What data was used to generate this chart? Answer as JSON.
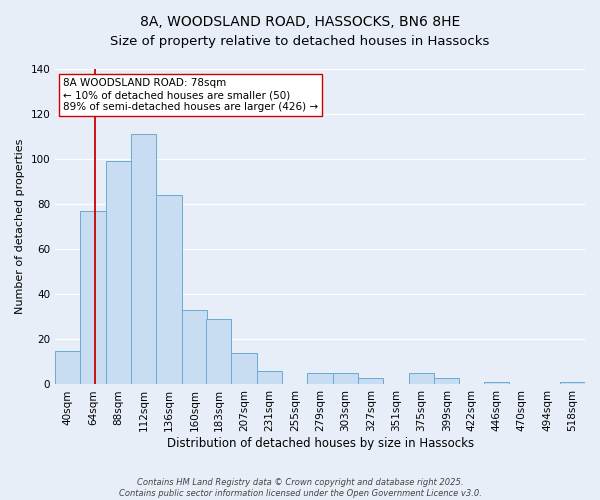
{
  "title": "8A, WOODSLAND ROAD, HASSOCKS, BN6 8HE",
  "subtitle": "Size of property relative to detached houses in Hassocks",
  "xlabel": "Distribution of detached houses by size in Hassocks",
  "ylabel": "Number of detached properties",
  "categories": [
    "40sqm",
    "64sqm",
    "88sqm",
    "112sqm",
    "136sqm",
    "160sqm",
    "183sqm",
    "207sqm",
    "231sqm",
    "255sqm",
    "279sqm",
    "303sqm",
    "327sqm",
    "351sqm",
    "375sqm",
    "399sqm",
    "422sqm",
    "446sqm",
    "470sqm",
    "494sqm",
    "518sqm"
  ],
  "bin_edges": [
    40,
    64,
    88,
    112,
    136,
    160,
    183,
    207,
    231,
    255,
    279,
    303,
    327,
    351,
    375,
    399,
    422,
    446,
    470,
    494,
    518
  ],
  "values": [
    15,
    77,
    99,
    111,
    84,
    33,
    29,
    14,
    6,
    0,
    5,
    5,
    3,
    0,
    5,
    3,
    0,
    1,
    0,
    0,
    1
  ],
  "bar_color": "#c8ddf2",
  "bar_edge_color": "#6aaad4",
  "vline_x": 78,
  "vline_color": "#cc0000",
  "annotation_text": "8A WOODSLAND ROAD: 78sqm\n← 10% of detached houses are smaller (50)\n89% of semi-detached houses are larger (426) →",
  "annotation_box_edge": "#cc0000",
  "annotation_box_fill": "white",
  "ylim": [
    0,
    140
  ],
  "yticks": [
    0,
    20,
    40,
    60,
    80,
    100,
    120,
    140
  ],
  "bg_color": "#e8eef8",
  "plot_bg_color": "#e8eef8",
  "grid_color": "#ffffff",
  "footer_line1": "Contains HM Land Registry data © Crown copyright and database right 2025.",
  "footer_line2": "Contains public sector information licensed under the Open Government Licence v3.0.",
  "title_fontsize": 10,
  "xlabel_fontsize": 8.5,
  "ylabel_fontsize": 8,
  "tick_fontsize": 7.5,
  "annotation_fontsize": 7.5,
  "footer_fontsize": 6
}
